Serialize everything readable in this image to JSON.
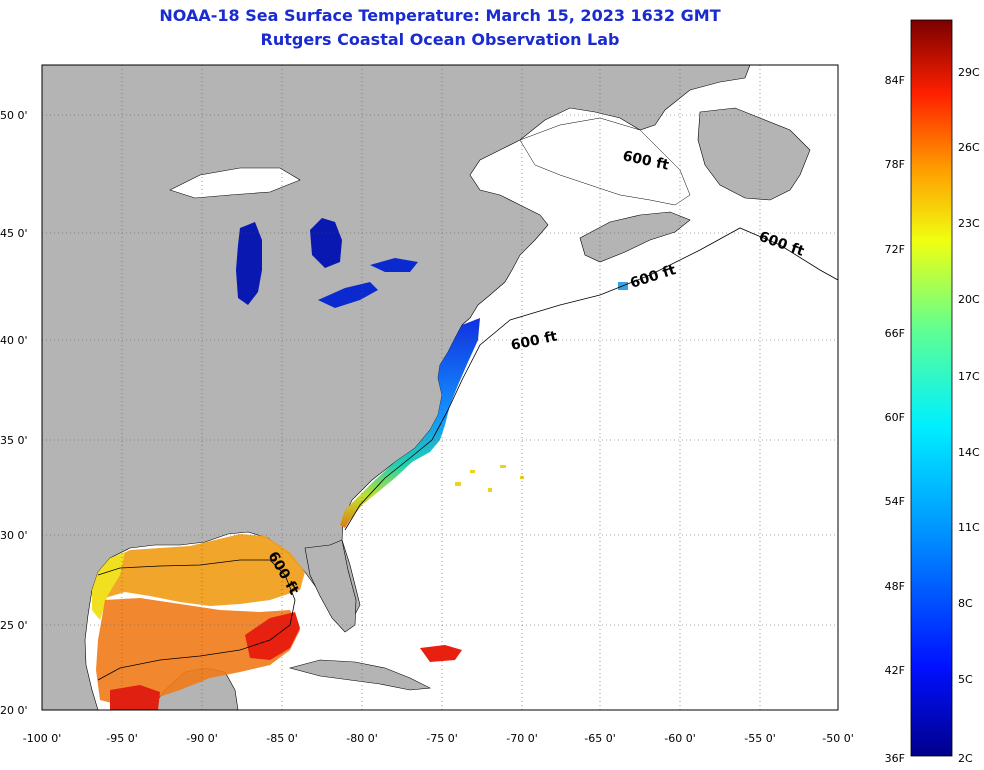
{
  "title": "NOAA-18 Sea Surface Temperature:  March 15, 2023 1632 GMT",
  "subtitle": "Rutgers Coastal Ocean Observation Lab",
  "lat_labels": [
    "50 0'",
    "45 0'",
    "40 0'",
    "35 0'",
    "30 0'",
    "25 0'",
    "20 0'"
  ],
  "lon_labels": [
    "-100 0'",
    "-95 0'",
    "-90 0'",
    "-85 0'",
    "-80 0'",
    "-75 0'",
    "-70 0'",
    "-65 0'",
    "-60 0'",
    "-55 0'",
    "-50 0'"
  ],
  "isobath_labels": [
    "600 ft",
    "600 ft",
    "600 ft",
    "600 ft",
    "600 ft"
  ],
  "colorbar": {
    "fahrenheit": [
      "84F",
      "78F",
      "72F",
      "66F",
      "60F",
      "54F",
      "48F",
      "42F",
      "36F"
    ],
    "celsius": [
      "29C",
      "26C",
      "23C",
      "20C",
      "17C",
      "14C",
      "11C",
      "8C",
      "5C",
      "2C"
    ]
  },
  "colors": {
    "land": "#b4b4b4",
    "ocean_no_data": "#ffffff",
    "title": "#1a2bd0",
    "grid": "#555555"
  }
}
